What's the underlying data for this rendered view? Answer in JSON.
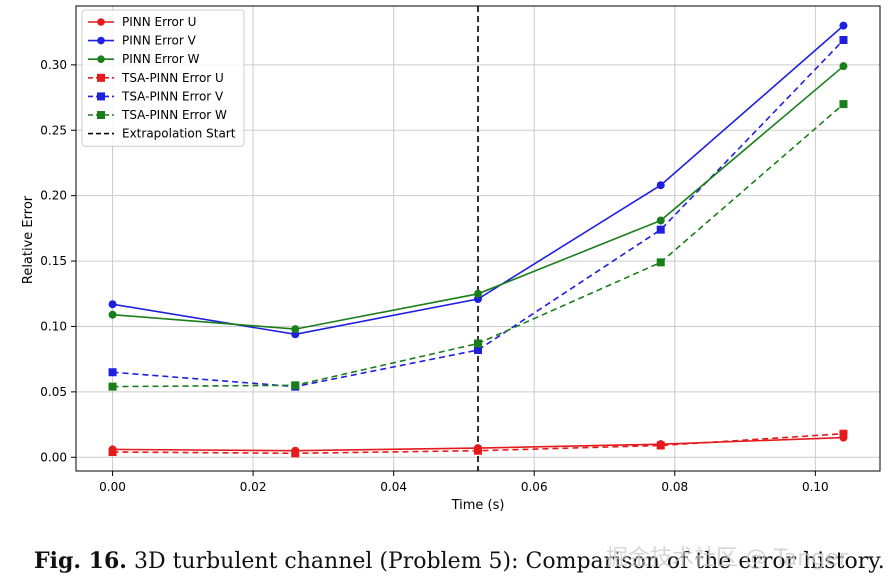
{
  "chart_data": {
    "type": "line",
    "xlabel": "Time (s)",
    "ylabel": "Relative Error",
    "xlim": [
      -0.0052,
      0.1092
    ],
    "ylim": [
      -0.0105,
      0.345
    ],
    "xticks": [
      0.0,
      0.02,
      0.04,
      0.06,
      0.08,
      0.1
    ],
    "xtick_labels": [
      "0.00",
      "0.02",
      "0.04",
      "0.06",
      "0.08",
      "0.10"
    ],
    "yticks": [
      0.0,
      0.05,
      0.1,
      0.15,
      0.2,
      0.25,
      0.3
    ],
    "ytick_labels": [
      "0.00",
      "0.05",
      "0.10",
      "0.15",
      "0.20",
      "0.25",
      "0.30"
    ],
    "grid": true,
    "legend_position": "top-left",
    "x": [
      0.0,
      0.026,
      0.052,
      0.078,
      0.104
    ],
    "series": [
      {
        "name": "PINN Error U",
        "color": "#e41a1c",
        "style": "solid",
        "marker": "circle",
        "values": [
          0.006,
          0.005,
          0.007,
          0.01,
          0.015
        ]
      },
      {
        "name": "PINN Error V",
        "color": "#1f1fdf",
        "style": "solid",
        "marker": "circle",
        "values": [
          0.117,
          0.094,
          0.121,
          0.208,
          0.33
        ]
      },
      {
        "name": "PINN Error W",
        "color": "#1a7f1a",
        "style": "solid",
        "marker": "circle",
        "values": [
          0.109,
          0.098,
          0.125,
          0.181,
          0.299
        ]
      },
      {
        "name": "TSA-PINN Error U",
        "color": "#e41a1c",
        "style": "dashed",
        "marker": "square",
        "values": [
          0.004,
          0.003,
          0.005,
          0.009,
          0.018
        ]
      },
      {
        "name": "TSA-PINN Error V",
        "color": "#1f1fdf",
        "style": "dashed",
        "marker": "square",
        "values": [
          0.065,
          0.054,
          0.082,
          0.174,
          0.319
        ]
      },
      {
        "name": "TSA-PINN Error W",
        "color": "#1a7f1a",
        "style": "dashed",
        "marker": "square",
        "values": [
          0.054,
          0.055,
          0.087,
          0.149,
          0.27
        ]
      }
    ],
    "vline": {
      "name": "Extrapolation Start",
      "x": 0.052,
      "color": "#000000",
      "style": "dashed"
    }
  },
  "caption": {
    "label": "Fig. 16.",
    "text": " 3D turbulent channel (Problem 5): Comparison of the error history."
  },
  "watermark": "掘金技术社区 @ Tanger"
}
